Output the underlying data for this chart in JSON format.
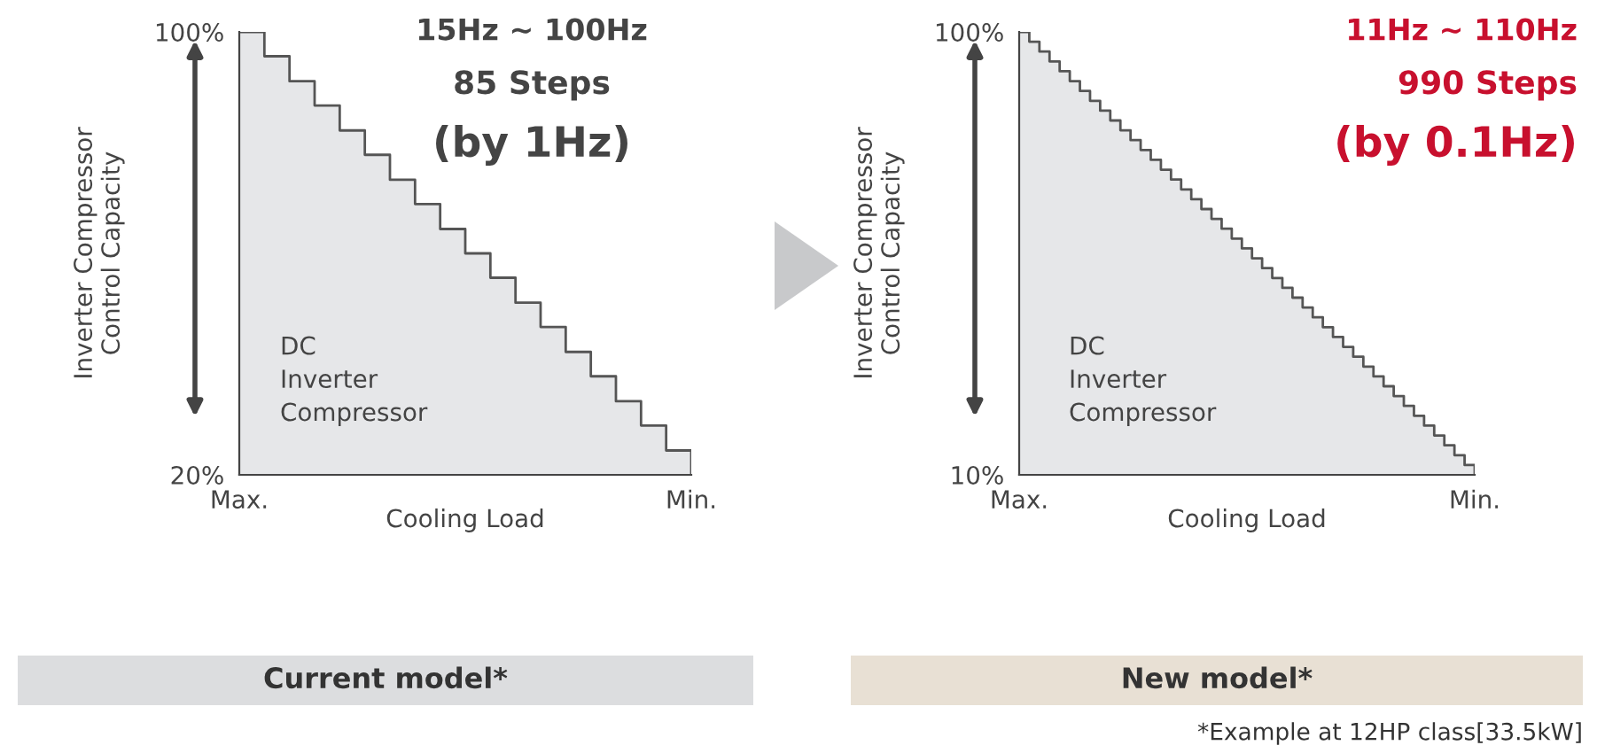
{
  "chart_data": [
    {
      "type": "step",
      "xlabel": "Cooling Load",
      "ylabel": "Inverter Compressor\nControl Capacity",
      "color": "#555555",
      "categories": [
        "Max.",
        null,
        null,
        null,
        null,
        null,
        null,
        null,
        null,
        null,
        null,
        null,
        null,
        null,
        null,
        null,
        null,
        null,
        "Min."
      ],
      "values": [
        100,
        95.6,
        91.1,
        86.7,
        82.2,
        77.8,
        73.3,
        68.9,
        64.4,
        60,
        55.6,
        51.1,
        46.7,
        42.2,
        37.8,
        33.3,
        28.9,
        24.4,
        20
      ],
      "ylim": [
        20,
        100
      ],
      "yticks": [
        {
          "value": 100,
          "label": "100%"
        },
        {
          "value": 20,
          "label": "20%"
        }
      ],
      "annotations": [
        "15Hz ~ 100Hz",
        "85 Steps",
        "(by 1Hz)",
        "DC\nInverter\nCompressor",
        "Current model*"
      ]
    },
    {
      "type": "step",
      "xlabel": "Cooling Load",
      "ylabel": "Inverter Compressor\nControl Capacity",
      "color": "#555555",
      "categories": [
        "Max.",
        null,
        null,
        null,
        null,
        null,
        null,
        null,
        null,
        null,
        null,
        null,
        null,
        null,
        null,
        null,
        null,
        null,
        null,
        null,
        null,
        null,
        null,
        null,
        null,
        null,
        null,
        null,
        null,
        null,
        null,
        null,
        null,
        null,
        null,
        null,
        null,
        null,
        null,
        null,
        null,
        null,
        null,
        null,
        null,
        "Min."
      ],
      "values": [
        100,
        98,
        96,
        94,
        92,
        90,
        88,
        86,
        84,
        82,
        80,
        78,
        76,
        74,
        72,
        70,
        68,
        66,
        64,
        62,
        60,
        58,
        56,
        54,
        52,
        50,
        48,
        46,
        44,
        42,
        40,
        38,
        36,
        34,
        32,
        30,
        28,
        26,
        24,
        22,
        20,
        18,
        16,
        14,
        12,
        10
      ],
      "ylim": [
        10,
        100
      ],
      "yticks": [
        {
          "value": 100,
          "label": "100%"
        },
        {
          "value": 10,
          "label": "10%"
        }
      ],
      "annotations": [
        "11Hz ~ 110Hz",
        "990 Steps",
        "(by 0.1Hz)",
        "DC\nInverter\nCompressor",
        "New model*",
        "*Example at 12HP class[33.5kW]"
      ]
    }
  ]
}
